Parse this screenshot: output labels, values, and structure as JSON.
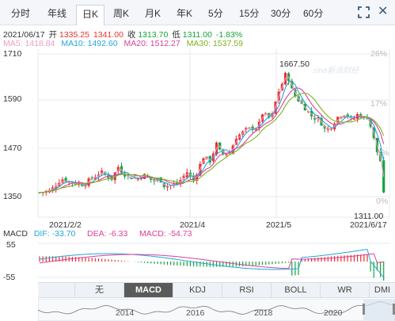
{
  "tabs": [
    {
      "label": "分时"
    },
    {
      "label": "年线"
    },
    {
      "label": "日K",
      "active": true
    },
    {
      "label": "周K"
    },
    {
      "label": "月K"
    },
    {
      "label": "年K"
    },
    {
      "label": "5分"
    },
    {
      "label": "15分"
    },
    {
      "label": "30分"
    },
    {
      "label": "60分"
    }
  ],
  "ohlc": {
    "date": "2021/06/17",
    "open_label": "开",
    "open": "1335.25",
    "high": "1341.00",
    "close_label": "收",
    "close": "1313.70",
    "low_label": "低",
    "low": "1311.00",
    "change": "-1.83%"
  },
  "ma": [
    {
      "label": "MA5:",
      "value": "1418.84",
      "color": "#f19bc2"
    },
    {
      "label": "MA10:",
      "value": "1492.60",
      "color": "#23a6d9"
    },
    {
      "label": "MA20:",
      "value": "1512.27",
      "color": "#d93f9a"
    },
    {
      "label": "MA30:",
      "value": "1537.59",
      "color": "#7fb21e"
    }
  ],
  "chart": {
    "y_ticks": [
      "1710",
      "1590",
      "1470",
      "1350"
    ],
    "pct_ticks": [
      "26%",
      "17%",
      "8%",
      "0%"
    ],
    "x_dates": [
      "2021/2/2",
      "2021/4",
      "2021/5",
      "2021/6/17"
    ],
    "high_annotation": "1667.50",
    "low_annotation": "1311.00",
    "watermark": "sina新浪财经",
    "up_color": "#e8312e",
    "down_color": "#14a33c"
  },
  "macd": {
    "title": "MACD",
    "dif_label": "DIF:",
    "dif": "-33.70",
    "dea_label": "DEA:",
    "dea": "-6.33",
    "macd_label": "MACD:",
    "macd": "-54.73",
    "y_ticks": [
      "55",
      "-55"
    ]
  },
  "indicators": [
    "无",
    "MACD",
    "KDJ",
    "RSI",
    "BOLL",
    "WR",
    "DMI"
  ],
  "indicator_active": "MACD",
  "arrows": [
    "▲",
    "▼"
  ],
  "navigator_years": [
    "2014",
    "2016",
    "2018",
    "2020"
  ]
}
